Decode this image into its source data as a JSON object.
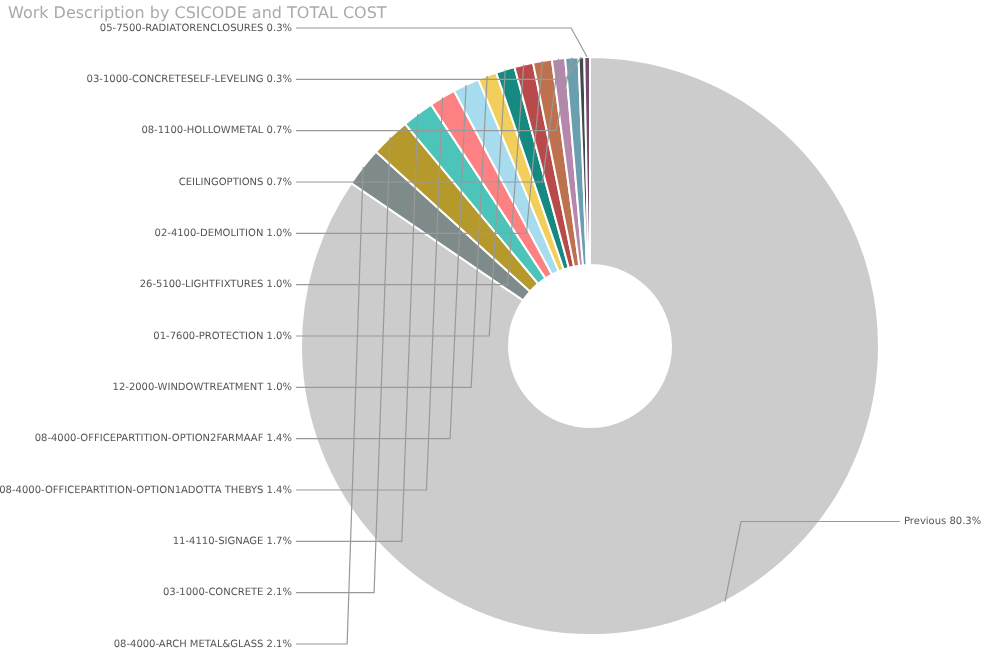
{
  "chart_data": {
    "type": "donut",
    "title": "Work Description by CSICODE and TOTAL COST",
    "categories": [
      "Previous",
      "08-4000-ARCH METAL&GLASS",
      "03-1000-CONCRETE",
      "11-4110-SIGNAGE",
      "08-4000-OFFICEPARTITION-OPTION1ADOTTA THEBYS",
      "08-4000-OFFICEPARTITION-OPTION2FARMAAF",
      "12-2000-WINDOWTREATMENT",
      "01-7600-PROTECTION",
      "26-5100-LIGHTFIXTURES",
      "02-4100-DEMOLITION",
      "CEILINGOPTIONS",
      "08-1100-HOLLOWMETAL",
      "03-1000-CONCRETESELF-LEVELING",
      "05-7500-RADIATORENCLOSURES"
    ],
    "values": [
      80.3,
      2.1,
      2.1,
      1.7,
      1.4,
      1.4,
      1.0,
      1.0,
      1.0,
      1.0,
      0.7,
      0.7,
      0.3,
      0.3
    ],
    "value_labels": [
      "80.3%",
      "2.1%",
      "2.1%",
      "1.7%",
      "1.4%",
      "1.4%",
      "1.0%",
      "1.0%",
      "1.0%",
      "1.0%",
      "0.7%",
      "0.7%",
      "0.3%",
      "0.3%"
    ],
    "colors": [
      "#cccccc",
      "#7f8a8a",
      "#b5992a",
      "#4cc4ba",
      "#fd8082",
      "#a6dced",
      "#f2cf5a",
      "#168a80",
      "#b94a4b",
      "#bd714f",
      "#b687ac",
      "#6a9fb0",
      "#404a4e",
      "#744b6d"
    ],
    "legend": false
  }
}
